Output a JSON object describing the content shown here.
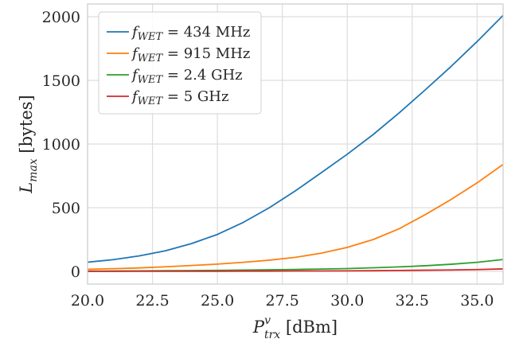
{
  "chart_data": {
    "type": "line",
    "xlabel": "P",
    "xlabel_super": "v",
    "xlabel_sub": "trx",
    "xlabel_unit": " [dBm]",
    "ylabel": "L",
    "ylabel_sub": "max",
    "ylabel_unit": " [bytes]",
    "xlim": [
      20.0,
      36.0
    ],
    "ylim": [
      -100,
      2100
    ],
    "xticks": [
      "20.0",
      "22.5",
      "25.0",
      "27.5",
      "30.0",
      "32.5",
      "35.0"
    ],
    "xtick_values": [
      20.0,
      22.5,
      25.0,
      27.5,
      30.0,
      32.5,
      35.0
    ],
    "yticks": [
      "0",
      "500",
      "1000",
      "1500",
      "2000"
    ],
    "ytick_values": [
      0,
      500,
      1000,
      1500,
      2000
    ],
    "grid": true,
    "legend_position": "top-left",
    "x": [
      20,
      21,
      22,
      23,
      24,
      25,
      26,
      27,
      28,
      29,
      30,
      31,
      32,
      33,
      34,
      35,
      36
    ],
    "series": [
      {
        "label_var": "f",
        "label_sub": "WET",
        "label_value": " = 434 MHz",
        "color": "#1f77b4",
        "values": [
          72,
          92,
          122,
          162,
          218,
          290,
          385,
          500,
          632,
          775,
          920,
          1075,
          1245,
          1425,
          1610,
          1805,
          2010
        ]
      },
      {
        "label_var": "f",
        "label_sub": "WET",
        "label_value": " = 915 MHz",
        "color": "#ff7f0e",
        "values": [
          16,
          21,
          27,
          36,
          46,
          57,
          71,
          88,
          110,
          143,
          188,
          250,
          335,
          445,
          565,
          695,
          840
        ]
      },
      {
        "label_var": "f",
        "label_sub": "WET",
        "label_value": " = 2.4 GHz",
        "color": "#2ca02c",
        "values": [
          2,
          3,
          4,
          5,
          6,
          8,
          10,
          12,
          15,
          18,
          22,
          28,
          35,
          44,
          56,
          71,
          93
        ]
      },
      {
        "label_var": "f",
        "label_sub": "WET",
        "label_value": " = 5 GHz",
        "color": "#d62728",
        "values": [
          0,
          0,
          1,
          1,
          1,
          1,
          2,
          2,
          3,
          3,
          4,
          5,
          7,
          9,
          11,
          14,
          19
        ]
      }
    ]
  }
}
